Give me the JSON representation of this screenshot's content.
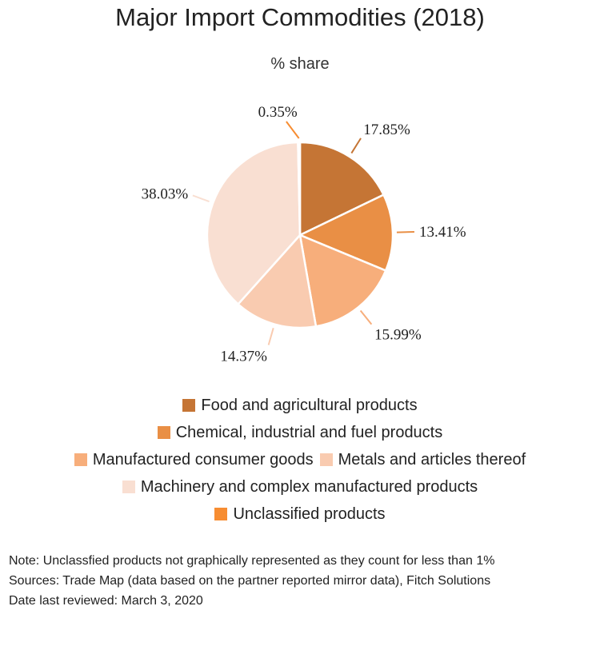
{
  "chart_data": {
    "type": "pie",
    "title": "Major Import Commodities (2018)",
    "subtitle": "% share",
    "slices": [
      {
        "name": "Food and agricultural products",
        "value": 17.85,
        "label": "17.85%",
        "color": "#c57535"
      },
      {
        "name": "Chemical, industrial and fuel products",
        "value": 13.41,
        "label": "13.41%",
        "color": "#e98f45"
      },
      {
        "name": "Manufactured consumer goods",
        "value": 15.99,
        "label": "15.99%",
        "color": "#f7ae7b"
      },
      {
        "name": "Metals and articles thereof",
        "value": 14.37,
        "label": "14.37%",
        "color": "#f9cbb0"
      },
      {
        "name": "Machinery and complex manufactured products",
        "value": 38.03,
        "label": "38.03%",
        "color": "#f9dfd2"
      },
      {
        "name": "Unclassified products",
        "value": 0.35,
        "label": "0.35%",
        "color": "#f78d32"
      }
    ],
    "legend_rows": [
      [
        0
      ],
      [
        1
      ],
      [
        2,
        3
      ],
      [
        4
      ],
      [
        5
      ]
    ]
  },
  "notes": {
    "note": "Note: Unclassfied products not graphically represented as they count for less than 1%",
    "sources": "Sources: Trade Map (data based on the partner reported mirror data), Fitch Solutions",
    "reviewed": "Date last reviewed: March 3, 2020"
  }
}
